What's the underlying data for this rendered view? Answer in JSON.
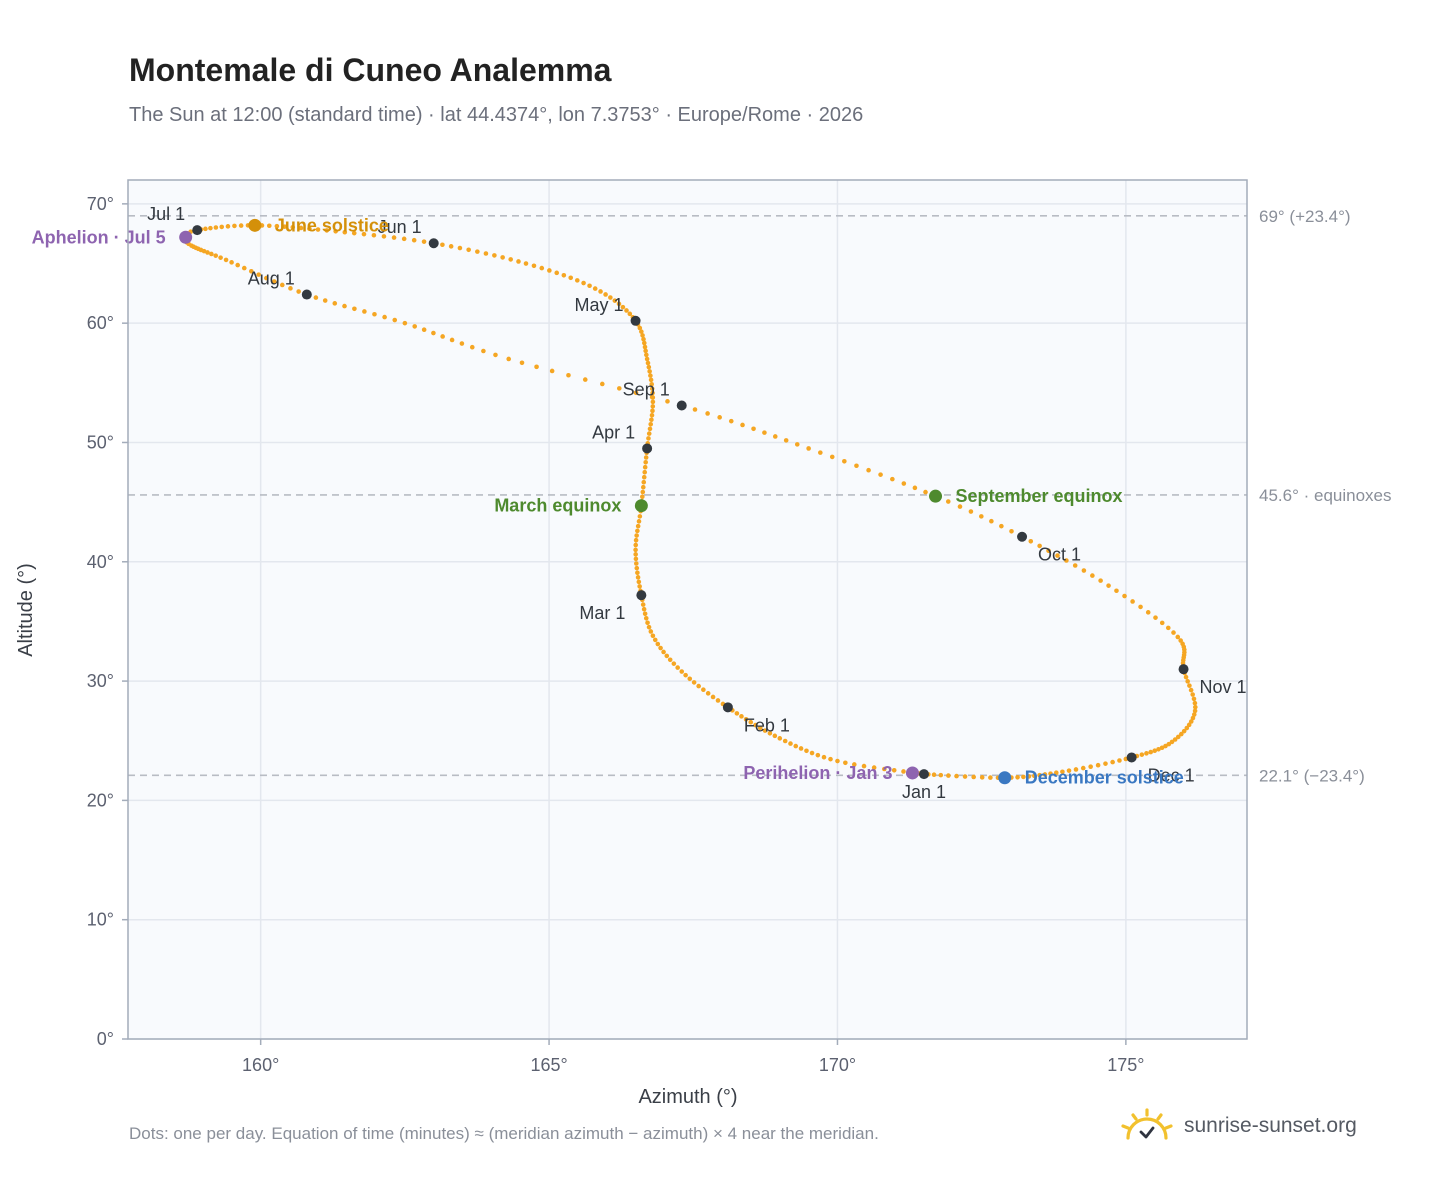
{
  "header": {
    "title": "Montemale di Cuneo Analemma",
    "subtitle": "The Sun at 12:00 (standard time) · lat 44.4374°, lon 7.3753° · Europe/Rome · 2026"
  },
  "footer": {
    "note": "Dots: one per day. Equation of time (minutes) ≈ (meridian azimuth − azimuth) × 4 near the meridian.",
    "brand": "sunrise-sunset.org"
  },
  "colors": {
    "curve": "#f5a623",
    "month_marker": "#333940",
    "june_solstice": "#d4900a",
    "equinox": "#4e8a2e",
    "december_solstice": "#3a78c2",
    "apsis": "#8e64b0",
    "reference_line": "#b8bcc4",
    "grid": "#e3e7ee",
    "plot_bg": "#f8fafd",
    "frame": "#a3acba",
    "logo": "#f2c12e"
  },
  "chart_data": {
    "type": "scatter",
    "xlabel": "Azimuth (°)",
    "ylabel": "Altitude (°)",
    "xlim": [
      157.7,
      177.1
    ],
    "ylim": [
      0,
      72
    ],
    "x_ticks": [
      160,
      165,
      170,
      175
    ],
    "x_tick_labels": [
      "160°",
      "165°",
      "170°",
      "175°"
    ],
    "y_ticks": [
      0,
      10,
      20,
      30,
      40,
      50,
      60,
      70
    ],
    "y_tick_labels": [
      "0°",
      "10°",
      "20°",
      "30°",
      "40°",
      "50°",
      "60°",
      "70°"
    ],
    "grid": true,
    "curve_knots": [
      {
        "doy": 1,
        "az": 171.5,
        "alt": 22.2
      },
      {
        "doy": 11,
        "az": 170.0,
        "alt": 23.3
      },
      {
        "doy": 21,
        "az": 169.0,
        "alt": 25.2
      },
      {
        "doy": 32,
        "az": 168.1,
        "alt": 27.8
      },
      {
        "doy": 42,
        "az": 167.3,
        "alt": 30.8
      },
      {
        "doy": 51,
        "az": 166.8,
        "alt": 33.8
      },
      {
        "doy": 60,
        "az": 166.6,
        "alt": 37.2
      },
      {
        "doy": 70,
        "az": 166.5,
        "alt": 41.0
      },
      {
        "doy": 79,
        "az": 166.6,
        "alt": 44.7
      },
      {
        "doy": 91,
        "az": 166.7,
        "alt": 49.5
      },
      {
        "doy": 101,
        "az": 166.8,
        "alt": 53.4
      },
      {
        "doy": 111,
        "az": 166.7,
        "alt": 57.0
      },
      {
        "doy": 121,
        "az": 166.5,
        "alt": 60.2
      },
      {
        "doy": 131,
        "az": 165.8,
        "alt": 62.9
      },
      {
        "doy": 141,
        "az": 164.6,
        "alt": 65.0
      },
      {
        "doy": 152,
        "az": 163.0,
        "alt": 66.7
      },
      {
        "doy": 162,
        "az": 161.3,
        "alt": 67.7
      },
      {
        "doy": 172,
        "az": 159.9,
        "alt": 68.2
      },
      {
        "doy": 182,
        "az": 158.9,
        "alt": 67.8
      },
      {
        "doy": 186,
        "az": 158.7,
        "alt": 67.2
      },
      {
        "doy": 192,
        "az": 158.8,
        "alt": 66.5
      },
      {
        "doy": 202,
        "az": 159.4,
        "alt": 65.3
      },
      {
        "doy": 213,
        "az": 160.8,
        "alt": 62.4
      },
      {
        "doy": 223,
        "az": 162.5,
        "alt": 60.0
      },
      {
        "doy": 233,
        "az": 164.3,
        "alt": 57.0
      },
      {
        "doy": 244,
        "az": 167.3,
        "alt": 53.1
      },
      {
        "doy": 255,
        "az": 169.5,
        "alt": 49.5
      },
      {
        "doy": 266,
        "az": 171.7,
        "alt": 45.5
      },
      {
        "doy": 274,
        "az": 173.2,
        "alt": 42.1
      },
      {
        "doy": 284,
        "az": 174.7,
        "alt": 38.0
      },
      {
        "doy": 294,
        "az": 175.9,
        "alt": 33.7
      },
      {
        "doy": 305,
        "az": 176.0,
        "alt": 31.0
      },
      {
        "doy": 315,
        "az": 176.2,
        "alt": 27.5
      },
      {
        "doy": 325,
        "az": 175.8,
        "alt": 24.9
      },
      {
        "doy": 335,
        "az": 175.1,
        "alt": 23.6
      },
      {
        "doy": 345,
        "az": 173.9,
        "alt": 22.4
      },
      {
        "doy": 355,
        "az": 172.9,
        "alt": 21.9
      },
      {
        "doy": 366,
        "az": 171.5,
        "alt": 22.2
      }
    ],
    "month_markers": [
      {
        "label": "Jan 1",
        "az": 171.5,
        "alt": 22.2,
        "pos": "below"
      },
      {
        "label": "Feb 1",
        "az": 168.1,
        "alt": 27.8,
        "pos": "below-right"
      },
      {
        "label": "Mar 1",
        "az": 166.6,
        "alt": 37.2,
        "pos": "below-left"
      },
      {
        "label": "Apr 1",
        "az": 166.7,
        "alt": 49.5,
        "pos": "above-left"
      },
      {
        "label": "May 1",
        "az": 166.5,
        "alt": 60.2,
        "pos": "above-left"
      },
      {
        "label": "Jun 1",
        "az": 163.0,
        "alt": 66.7,
        "pos": "above-left"
      },
      {
        "label": "Jul 1",
        "az": 158.9,
        "alt": 67.8,
        "pos": "above-left"
      },
      {
        "label": "Aug 1",
        "az": 160.8,
        "alt": 62.4,
        "pos": "above-left"
      },
      {
        "label": "Sep 1",
        "az": 167.3,
        "alt": 53.1,
        "pos": "above-left"
      },
      {
        "label": "Oct 1",
        "az": 173.2,
        "alt": 42.1,
        "pos": "below-right"
      },
      {
        "label": "Nov 1",
        "az": 176.0,
        "alt": 31.0,
        "pos": "below-right"
      },
      {
        "label": "Dec 1",
        "az": 175.1,
        "alt": 23.6,
        "pos": "below-right"
      }
    ],
    "events": [
      {
        "label": "June solstice",
        "az": 159.9,
        "alt": 68.2,
        "color_key": "june_solstice",
        "pos": "right"
      },
      {
        "label": "March equinox",
        "az": 166.6,
        "alt": 44.7,
        "color_key": "equinox",
        "pos": "left"
      },
      {
        "label": "September equinox",
        "az": 171.7,
        "alt": 45.5,
        "color_key": "equinox",
        "pos": "right"
      },
      {
        "label": "December solstice",
        "az": 172.9,
        "alt": 21.9,
        "color_key": "december_solstice",
        "pos": "right"
      },
      {
        "label": "Aphelion · Jul 5",
        "az": 158.7,
        "alt": 67.2,
        "color_key": "apsis",
        "pos": "left"
      },
      {
        "label": "Perihelion · Jan 3",
        "az": 171.3,
        "alt": 22.3,
        "color_key": "apsis",
        "pos": "left"
      }
    ],
    "reference_lines": [
      {
        "alt": 69.0,
        "label": "69° (+23.4°)"
      },
      {
        "alt": 45.6,
        "label": "45.6° · equinoxes"
      },
      {
        "alt": 22.1,
        "label": "22.1° (−23.4°)"
      }
    ]
  }
}
